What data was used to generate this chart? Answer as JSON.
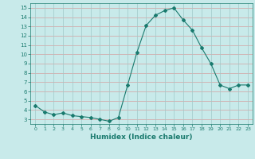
{
  "x": [
    0,
    1,
    2,
    3,
    4,
    5,
    6,
    7,
    8,
    9,
    10,
    11,
    12,
    13,
    14,
    15,
    16,
    17,
    18,
    19,
    20,
    21,
    22,
    23
  ],
  "y": [
    4.5,
    3.8,
    3.5,
    3.7,
    3.4,
    3.3,
    3.2,
    3.0,
    2.8,
    3.2,
    6.7,
    10.2,
    13.1,
    14.2,
    14.7,
    15.0,
    13.7,
    12.6,
    10.7,
    9.0,
    6.7,
    6.3,
    6.7,
    6.7
  ],
  "line_color": "#1a7a6e",
  "marker": "D",
  "marker_size": 2,
  "bg_color": "#c8eaea",
  "grid_color_h": "#d4a0a0",
  "grid_color_v": "#a0c8c8",
  "tick_color": "#1a7a6e",
  "xlabel": "Humidex (Indice chaleur)",
  "xlim": [
    -0.5,
    23.5
  ],
  "ylim": [
    2.5,
    15.5
  ],
  "yticks": [
    3,
    4,
    5,
    6,
    7,
    8,
    9,
    10,
    11,
    12,
    13,
    14,
    15
  ],
  "xticks": [
    0,
    1,
    2,
    3,
    4,
    5,
    6,
    7,
    8,
    9,
    10,
    11,
    12,
    13,
    14,
    15,
    16,
    17,
    18,
    19,
    20,
    21,
    22,
    23
  ]
}
